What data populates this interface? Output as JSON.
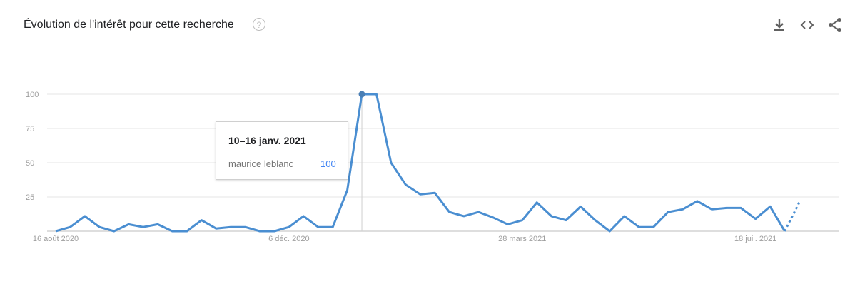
{
  "header": {
    "title": "Évolution de l'intérêt pour cette recherche",
    "help_glyph": "?",
    "icons": [
      "download-icon",
      "embed-icon",
      "share-icon"
    ]
  },
  "tooltip": {
    "date": "10–16 janv. 2021",
    "term": "maurice leblanc",
    "value": "100"
  },
  "chart_data": {
    "type": "line",
    "title": "",
    "xlabel": "",
    "ylabel": "",
    "ylim": [
      0,
      100
    ],
    "yticks": [
      25,
      50,
      75,
      100
    ],
    "xtick_labels": [
      "16 août 2020",
      "6 déc. 2020",
      "28 mars 2021",
      "18 juil. 2021"
    ],
    "xtick_index": [
      0,
      16,
      32,
      48
    ],
    "grid": true,
    "line_color": "#4a8ed1",
    "series": [
      {
        "name": "maurice leblanc",
        "values": [
          0,
          3,
          11,
          3,
          0,
          5,
          3,
          5,
          0,
          0,
          8,
          2,
          3,
          3,
          0,
          0,
          3,
          11,
          3,
          3,
          30,
          100,
          100,
          50,
          34,
          27,
          28,
          14,
          11,
          14,
          10,
          5,
          8,
          21,
          11,
          8,
          18,
          8,
          0,
          11,
          3,
          3,
          14,
          16,
          22,
          16,
          17,
          17,
          9,
          18,
          0
        ],
        "partial_values": [
          0,
          21
        ]
      }
    ],
    "highlight_index": 21
  }
}
